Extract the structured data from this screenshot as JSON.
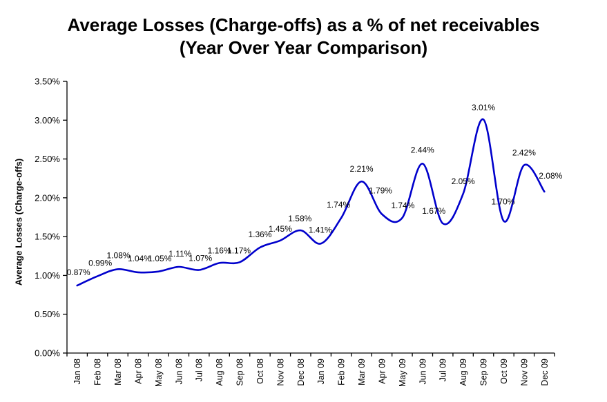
{
  "page": {
    "background": "#FFFFFF",
    "text_color": "#000000"
  },
  "chart_data": {
    "type": "line",
    "title": "Average Losses (Charge-offs) as a % of net receivables (Year Over Year Comparison)",
    "title_line1": "Average Losses (Charge-offs) as a % of net receivables",
    "title_line2": "(Year Over Year Comparison)",
    "xlabel": "",
    "ylabel": "Average Losses (Charge-offs)",
    "categories": [
      "Jan 08",
      "Feb 08",
      "Mar 08",
      "Apr 08",
      "May 08",
      "Jun 08",
      "Jul 08",
      "Aug 08",
      "Sep 08",
      "Oct 08",
      "Nov 08",
      "Dec 08",
      "Jan 09",
      "Feb 09",
      "Mar 09",
      "Apr 09",
      "May 09",
      "Jun 09",
      "Jul 09",
      "Aug 09",
      "Sep 09",
      "Oct 09",
      "Nov 09",
      "Dec 09"
    ],
    "values": [
      0.87,
      0.99,
      1.08,
      1.04,
      1.05,
      1.11,
      1.07,
      1.16,
      1.17,
      1.36,
      1.45,
      1.58,
      1.41,
      1.74,
      2.21,
      1.79,
      1.74,
      2.44,
      1.67,
      2.05,
      3.01,
      1.7,
      2.42,
      2.08
    ],
    "data_labels": [
      "0.87%",
      "0.99%",
      "1.08%",
      "1.04%",
      "1.05%",
      "1.11%",
      "1.07%",
      "1.16%",
      "1.17%",
      "1.36%",
      "1.45%",
      "1.58%",
      "1.41%",
      "1.74%",
      "2.21%",
      "1.79%",
      "1.74%",
      "2.44%",
      "1.67%",
      "2.05%",
      "3.01%",
      "1.70%",
      "2.42%",
      "2.08%"
    ],
    "ylim": [
      0,
      3.5
    ],
    "y_tick_step": 0.5,
    "y_tick_labels": [
      "0.00%",
      "0.50%",
      "1.00%",
      "1.50%",
      "2.00%",
      "2.50%",
      "3.00%",
      "3.50%"
    ],
    "grid": false,
    "legend": "none",
    "smoothed": true,
    "line_color": "#0000CC",
    "axis_color": "#000000",
    "label_color": "#000000"
  }
}
